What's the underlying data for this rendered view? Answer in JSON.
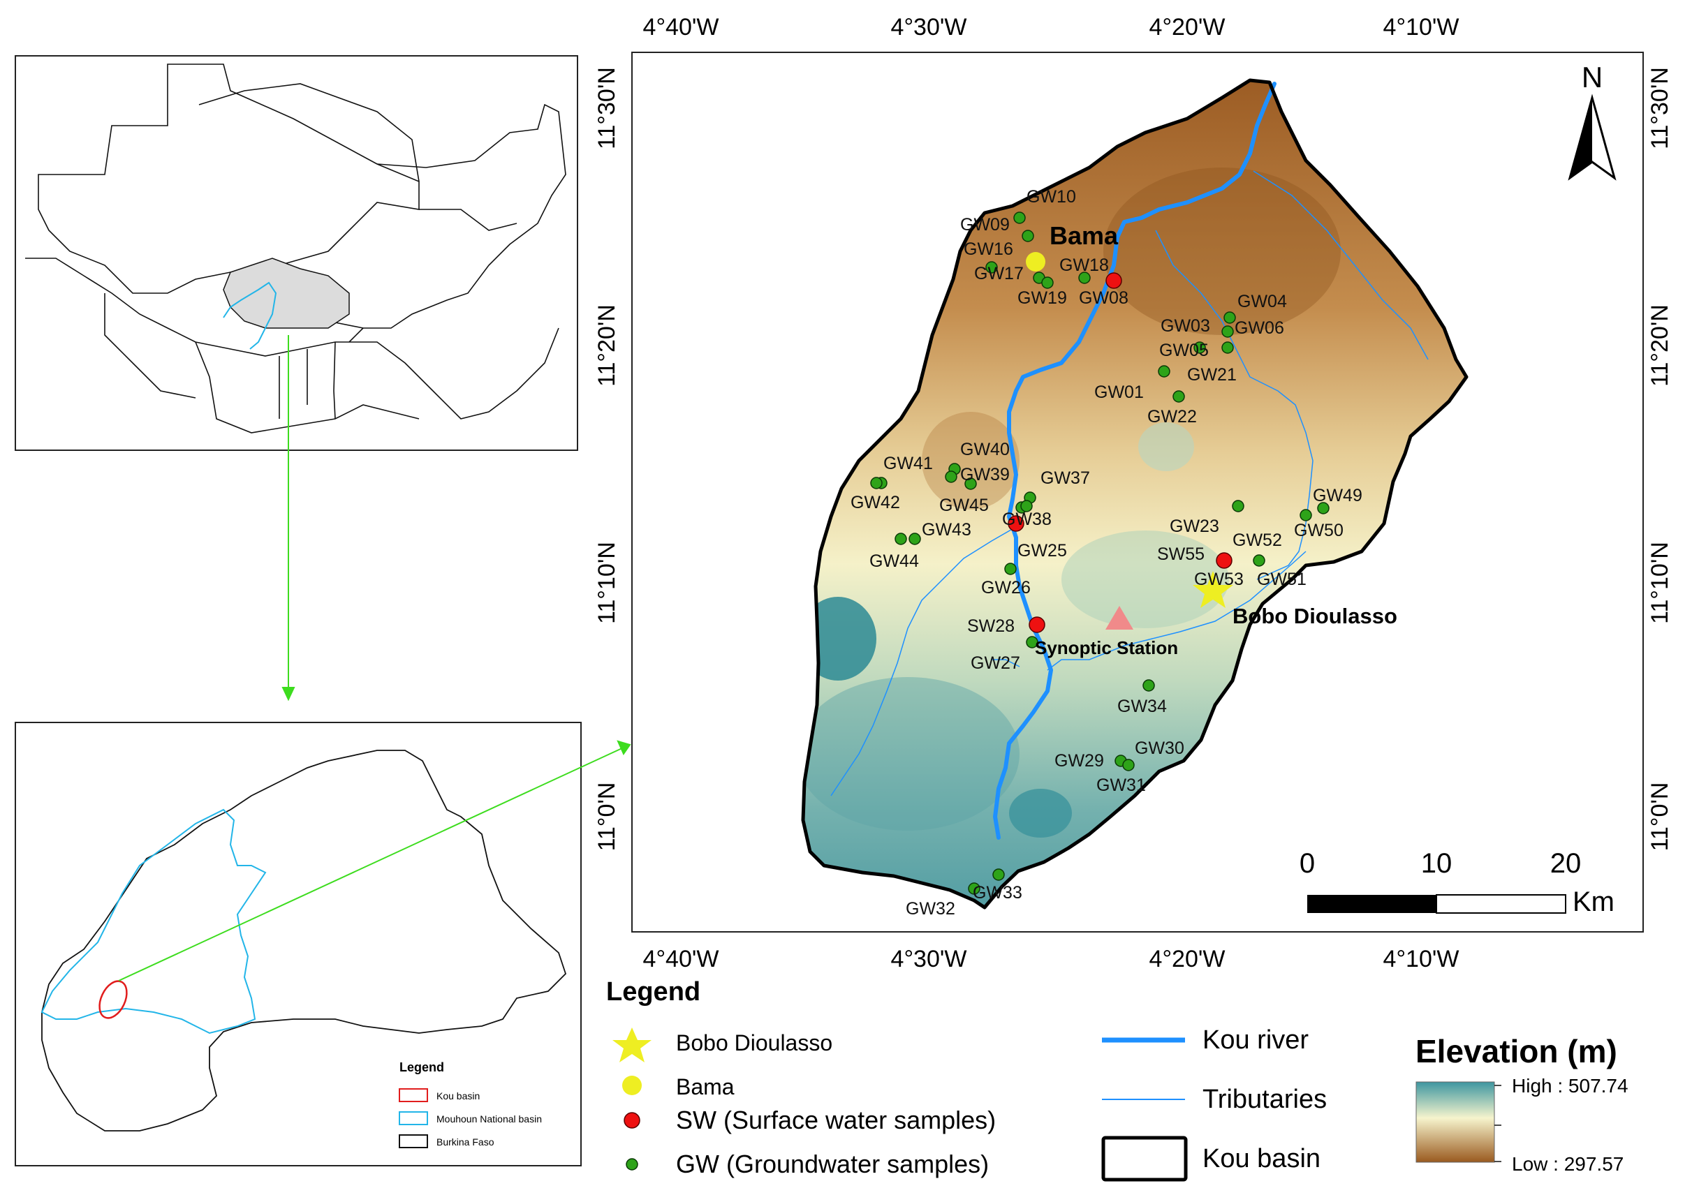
{
  "inset_west_africa": {
    "title": ""
  },
  "inset_burkina": {
    "legend_title": "Legend",
    "legend_items": [
      {
        "label": "Kou basin",
        "color": "#e11d1d"
      },
      {
        "label": "Mouhoun National basin",
        "color": "#22b5e8"
      },
      {
        "label": "Burkina Faso",
        "color": "#000000"
      }
    ]
  },
  "main_map": {
    "lon_labels": [
      "4°40'W",
      "4°30'W",
      "4°20'W",
      "4°10'W"
    ],
    "lat_labels": [
      "11°30'N",
      "11°20'N",
      "11°10'N",
      "11°0'N"
    ],
    "north_label": "N",
    "scale": {
      "ticks": [
        "0",
        "10",
        "20"
      ],
      "unit": "Km"
    },
    "place_labels": {
      "bama": "Bama",
      "bobo": "Bobo Dioulasso",
      "synoptic": "Synoptic Station"
    },
    "sw_points": [
      "SW28",
      "SW55"
    ],
    "gw_labels": [
      "GW10",
      "GW09",
      "GW16",
      "GW17",
      "GW18",
      "GW19",
      "GW08",
      "GW04",
      "GW03",
      "GW06",
      "GW05",
      "GW21",
      "GW01",
      "GW22",
      "GW40",
      "GW41",
      "GW39",
      "GW37",
      "GW42",
      "GW45",
      "GW38",
      "GW43",
      "GW44",
      "GW25",
      "GW26",
      "GW23",
      "GW52",
      "GW50",
      "GW49",
      "GW53",
      "GW51",
      "GW27",
      "GW34",
      "GW29",
      "GW30",
      "GW31",
      "GW32",
      "GW33"
    ]
  },
  "legend": {
    "title": "Legend",
    "items": [
      {
        "label": "Bobo Dioulasso",
        "symbol": "star-yellow"
      },
      {
        "label": "Bama",
        "symbol": "circle-yellow"
      },
      {
        "label": "SW (Surface water samples)",
        "symbol": "circle-red"
      },
      {
        "label": "GW (Groundwater samples)",
        "symbol": "circle-green"
      },
      {
        "label": "Kou river",
        "symbol": "line-thick-blue"
      },
      {
        "label": "Tributaries",
        "symbol": "line-thin-blue"
      },
      {
        "label": "Kou basin",
        "symbol": "rect-black"
      }
    ],
    "elevation": {
      "title": "Elevation (m)",
      "high": "High : 507.74",
      "low": "Low : 297.57"
    }
  },
  "colors": {
    "elev_high": "#2d8a94",
    "elev_low": "#96591e",
    "mid": "#f7f4c8",
    "river": "#1e90ff",
    "gw": "#2ea319",
    "sw": "#ee1111",
    "bama": "#eeee22",
    "connector": "#3ddc1e"
  }
}
